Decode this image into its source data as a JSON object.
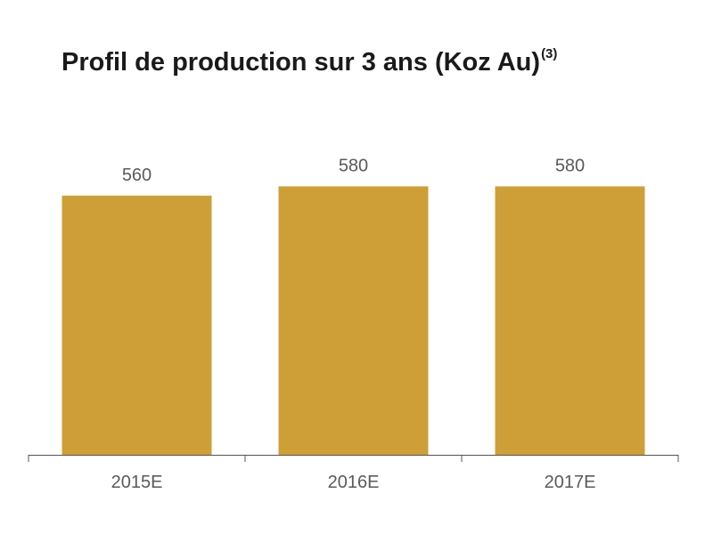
{
  "chart_data": {
    "type": "bar",
    "title": "Profil de production sur 3 ans (Koz Au)",
    "title_superscript": "(3)",
    "categories": [
      "2015E",
      "2016E",
      "2017E"
    ],
    "values": [
      560,
      580,
      580
    ],
    "data_labels": [
      "560",
      "580",
      "580"
    ],
    "xlabel": "",
    "ylabel": "",
    "ylim": [
      0,
      600
    ],
    "grid": false,
    "legend": "none",
    "colors": {
      "bar": "#cf9f37",
      "axis": "#555555",
      "label": "#5a5a5a",
      "title": "#1a1a1a"
    }
  }
}
